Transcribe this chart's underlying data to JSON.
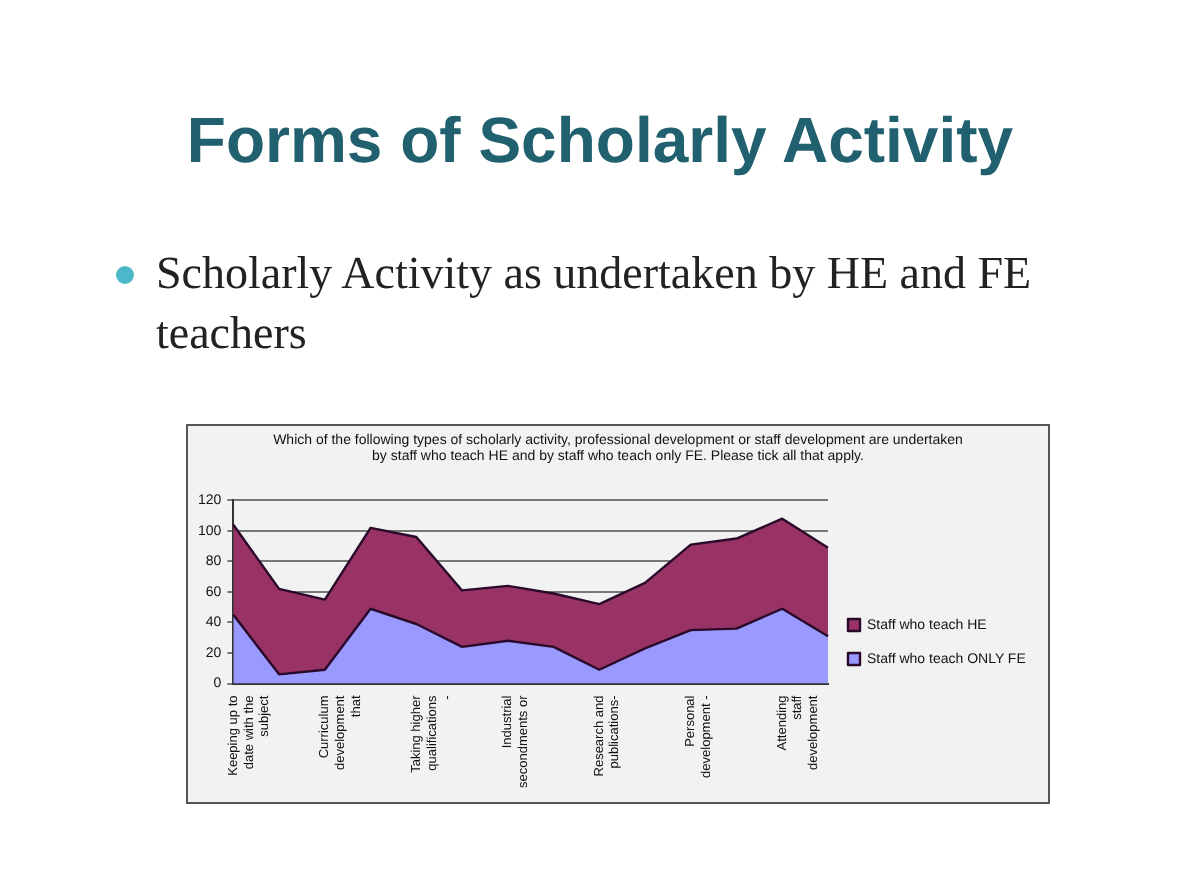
{
  "chart_data": {
    "type": "area",
    "title": "Forms of Scholarly Activity",
    "subtitle": "Scholarly Activity as undertaken by HE and FE teachers",
    "annotations": [
      "Which of the following types of scholarly activity, professional development or staff development are undertaken by staff who teach HE and by staff who teach only FE. Please tick all that apply."
    ],
    "categories": [
      "Keeping up to date with the subject",
      null,
      "Curriculum development that",
      null,
      "Taking higher qualifications -",
      null,
      "Industrial secondments or",
      null,
      "Research and publications-",
      null,
      "Personal development -",
      null,
      "Attending staff development",
      null
    ],
    "series": [
      {
        "name": "Staff who teach ONLY FE",
        "color": "#9999ff",
        "values": [
          45,
          6,
          9,
          49,
          39,
          24,
          28,
          24,
          9,
          23,
          35,
          36,
          49,
          31
        ]
      },
      {
        "name": "Staff who teach HE",
        "color": "#993366",
        "values": [
          59,
          56,
          46,
          53,
          57,
          37,
          36,
          35,
          43,
          43,
          56,
          59,
          59,
          58
        ]
      }
    ],
    "stacked": true,
    "ylim": [
      0,
      120
    ],
    "yticks": [
      0,
      20,
      40,
      60,
      80,
      100,
      120
    ],
    "grid": "y",
    "legend": "right",
    "marker": "none"
  }
}
